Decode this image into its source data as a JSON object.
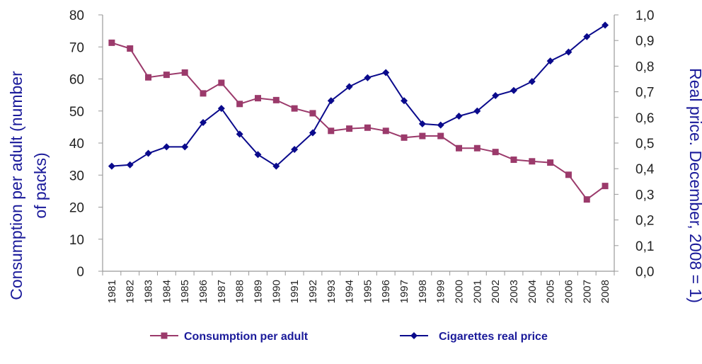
{
  "chart_data": {
    "type": "line",
    "x": [
      "1981",
      "1982",
      "1983",
      "1984",
      "1985",
      "1986",
      "1987",
      "1988",
      "1989",
      "1990",
      "1991",
      "1992",
      "1993",
      "1994",
      "1995",
      "1996",
      "1997",
      "1998",
      "1999",
      "2000",
      "2001",
      "2002",
      "2003",
      "2004",
      "2005",
      "2006",
      "2007",
      "2008"
    ],
    "series": [
      {
        "name": "Consumption per adult",
        "axis": "left",
        "color": "#9b3a6b",
        "marker": "square",
        "values": [
          71.3,
          69.5,
          60.5,
          61.3,
          62.0,
          55.5,
          58.8,
          52.2,
          54.0,
          53.4,
          50.8,
          49.3,
          43.8,
          44.5,
          44.8,
          43.8,
          41.7,
          42.2,
          42.2,
          38.4,
          38.4,
          37.2,
          34.8,
          34.3,
          33.9,
          30.1,
          22.4,
          26.6
        ]
      },
      {
        "name": "Cigarettes real price",
        "axis": "right",
        "color": "#0a0a8c",
        "marker": "diamond",
        "values": [
          0.41,
          0.415,
          0.46,
          0.485,
          0.485,
          0.58,
          0.635,
          0.535,
          0.455,
          0.41,
          0.475,
          0.54,
          0.665,
          0.72,
          0.755,
          0.775,
          0.665,
          0.575,
          0.57,
          0.605,
          0.625,
          0.685,
          0.705,
          0.74,
          0.82,
          0.855,
          0.915,
          0.96
        ]
      }
    ],
    "ylabel_left": "Consumption per adult (number of packs)",
    "ylabel_right": "Real price. December, 2008 = 1)",
    "ylim_left": [
      0,
      80
    ],
    "ylim_right": [
      0,
      1
    ],
    "yticks_left": [
      "0",
      "10",
      "20",
      "30",
      "40",
      "50",
      "60",
      "70",
      "80"
    ],
    "yticks_right": [
      "0,0",
      "0,1",
      "0,2",
      "0,3",
      "0,4",
      "0,5",
      "0,6",
      "0,7",
      "0,8",
      "0,9",
      "1,0"
    ],
    "grid": false,
    "legend_placement": "bottom"
  }
}
